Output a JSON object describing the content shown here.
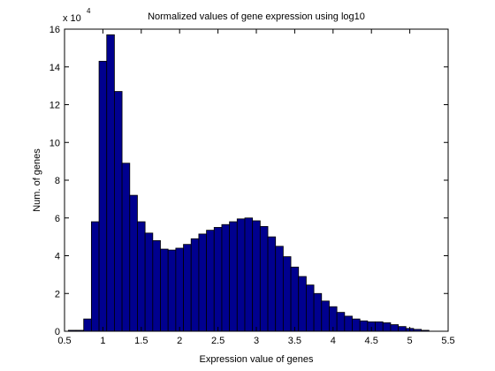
{
  "chart_data": {
    "type": "bar",
    "title": "Normalized values of gene expression using log10",
    "xlabel": "Expression value of genes",
    "ylabel": "Num. of genes",
    "y_scale_note": {
      "base": "x 10",
      "exponent": "4"
    },
    "xlim": [
      0.5,
      5.5
    ],
    "ylim": [
      0,
      16
    ],
    "x_ticks": [
      "0.5",
      "1",
      "1.5",
      "2",
      "2.5",
      "3",
      "3.5",
      "4",
      "4.5",
      "5",
      "5.5"
    ],
    "x_tick_values": [
      0.5,
      1,
      1.5,
      2,
      2.5,
      3,
      3.5,
      4,
      4.5,
      5,
      5.5
    ],
    "y_ticks": [
      "0",
      "2",
      "4",
      "6",
      "8",
      "10",
      "12",
      "14",
      "16"
    ],
    "y_tick_values": [
      0,
      2,
      4,
      6,
      8,
      10,
      12,
      14,
      16
    ],
    "bin_width": 0.1,
    "bin_centers": [
      0.6,
      0.7,
      0.8,
      0.9,
      1.0,
      1.1,
      1.2,
      1.3,
      1.4,
      1.5,
      1.6,
      1.7,
      1.8,
      1.9,
      2.0,
      2.1,
      2.2,
      2.3,
      2.4,
      2.5,
      2.6,
      2.7,
      2.8,
      2.9,
      3.0,
      3.1,
      3.2,
      3.3,
      3.4,
      3.5,
      3.6,
      3.7,
      3.8,
      3.9,
      4.0,
      4.1,
      4.2,
      4.3,
      4.4,
      4.5,
      4.6,
      4.7,
      4.8,
      4.9,
      5.0,
      5.1,
      5.2
    ],
    "values": [
      0.05,
      0.05,
      0.65,
      5.8,
      14.3,
      15.7,
      12.7,
      8.9,
      7.2,
      5.8,
      5.2,
      4.8,
      4.35,
      4.3,
      4.4,
      4.6,
      4.9,
      5.15,
      5.35,
      5.5,
      5.65,
      5.8,
      5.95,
      6.0,
      5.85,
      5.55,
      5.0,
      4.5,
      3.95,
      3.4,
      2.9,
      2.45,
      2.0,
      1.6,
      1.3,
      1.0,
      0.8,
      0.65,
      0.55,
      0.5,
      0.5,
      0.45,
      0.35,
      0.25,
      0.15,
      0.1,
      0.05
    ],
    "bar_color": "#00008f",
    "edge_color": "#000000",
    "grid": false,
    "legend": "none"
  }
}
